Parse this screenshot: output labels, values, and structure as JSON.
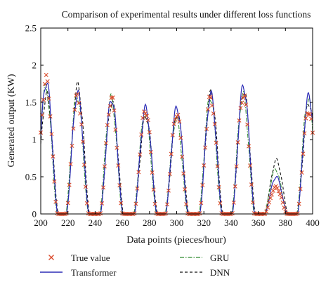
{
  "chart_data": {
    "type": "line",
    "title": "Comparison of experimental results under different loss functions",
    "xlabel": "Data points (pieces/hour)",
    "ylabel": "Generated output (KW)",
    "xlim": [
      200,
      400
    ],
    "ylim": [
      0,
      2.5
    ],
    "x_ticks": [
      "200",
      "220",
      "240",
      "260",
      "280",
      "300",
      "320",
      "340",
      "360",
      "380",
      "400"
    ],
    "y_ticks": [
      "0",
      "0.5",
      "1",
      "1.5",
      "2",
      "2.5"
    ],
    "grid": false,
    "legend_position": "bottom",
    "peaks": [
      {
        "x": 204,
        "true": 1.8,
        "transformer": 1.78,
        "gru": 1.7,
        "dnn": 1.6
      },
      {
        "x": 227,
        "true": 1.58,
        "transformer": 1.62,
        "gru": 1.6,
        "dnn": 1.72
      },
      {
        "x": 252,
        "true": 1.55,
        "transformer": 1.55,
        "gru": 1.56,
        "dnn": 1.5
      },
      {
        "x": 277,
        "true": 1.4,
        "transformer": 1.42,
        "gru": 1.35,
        "dnn": 1.32
      },
      {
        "x": 300,
        "true": 1.35,
        "transformer": 1.43,
        "gru": 1.28,
        "dnn": 1.35
      },
      {
        "x": 325,
        "true": 1.56,
        "transformer": 1.6,
        "gru": 1.58,
        "dnn": 1.62
      },
      {
        "x": 349,
        "true": 1.6,
        "transformer": 1.72,
        "gru": 1.6,
        "dnn": 1.66
      },
      {
        "x": 373,
        "true": 0.36,
        "transformer": 0.5,
        "gru": 0.6,
        "dnn": 0.72
      },
      {
        "x": 397,
        "true": 1.4,
        "transformer": 1.58,
        "gru": 1.55,
        "dnn": 1.5
      }
    ],
    "series": [
      {
        "name": "True value",
        "color": "#d94a2b",
        "style": "markers-x"
      },
      {
        "name": "Transformer",
        "color": "#2b2bb5",
        "style": "solid"
      },
      {
        "name": "GRU",
        "color": "#2e8b2e",
        "style": "dash-dot"
      },
      {
        "name": "DNN",
        "color": "#111111",
        "style": "dashed"
      }
    ]
  }
}
